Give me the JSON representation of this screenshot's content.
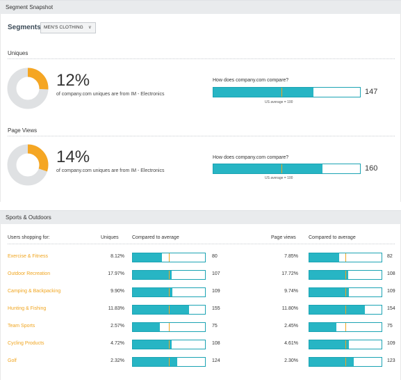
{
  "snapshot": {
    "header": "Segment Snapshot",
    "segments_label": "Segments",
    "segment_value": "MEN'S CLOTHING",
    "uniques": {
      "label": "Uniques",
      "percent": "12%",
      "percent_value": 12,
      "description": "of company.com uniques are from IM - Electronics",
      "compare_title": "How does company.com compare?",
      "index": "147",
      "index_value": 147,
      "note": "US average = 100"
    },
    "pageviews": {
      "label": "Page Views",
      "percent": "14%",
      "percent_value": 14,
      "description": "of company.com uniques are from IM - Electronics",
      "compare_title": "How does company.com compare?",
      "index": "160",
      "index_value": 160,
      "note": "US average = 100"
    }
  },
  "sports": {
    "header": "Sports & Outdoors",
    "columns": {
      "users": "Users shopping for:",
      "uniques": "Uniques",
      "compared1": "Compared to average",
      "pageviews": "Page views",
      "compared2": "Compared to average"
    },
    "rows": [
      {
        "name": "Exercise & Fitness",
        "uniques": "8.12%",
        "u_index": "80",
        "u_value": 80,
        "pageviews": "7.85%",
        "p_index": "82",
        "p_value": 82
      },
      {
        "name": "Outdoor Recreation",
        "uniques": "17.97%",
        "u_index": "107",
        "u_value": 107,
        "pageviews": "17.72%",
        "p_index": "108",
        "p_value": 108
      },
      {
        "name": "Camping & Backpacking",
        "uniques": "9.90%",
        "u_index": "109",
        "u_value": 109,
        "pageviews": "9.74%",
        "p_index": "109",
        "p_value": 109
      },
      {
        "name": "Hunting & Fishing",
        "uniques": "11.83%",
        "u_index": "155",
        "u_value": 155,
        "pageviews": "11.80%",
        "p_index": "154",
        "p_value": 154
      },
      {
        "name": "Team Sports",
        "uniques": "2.57%",
        "u_index": "75",
        "u_value": 75,
        "pageviews": "2.45%",
        "p_index": "75",
        "p_value": 75
      },
      {
        "name": "Cycling Products",
        "uniques": "4.72%",
        "u_index": "108",
        "u_value": 108,
        "pageviews": "4.61%",
        "p_index": "109",
        "p_value": 109
      },
      {
        "name": "Golf",
        "uniques": "2.32%",
        "u_index": "124",
        "u_value": 124,
        "pageviews": "2.30%",
        "p_index": "123",
        "p_value": 123
      }
    ]
  },
  "colors": {
    "accent": "#27b5c4",
    "marker": "#f0a51f",
    "donut_fill": "#f5a623",
    "donut_track": "#dfe1e3",
    "link": "#f0a51f"
  }
}
